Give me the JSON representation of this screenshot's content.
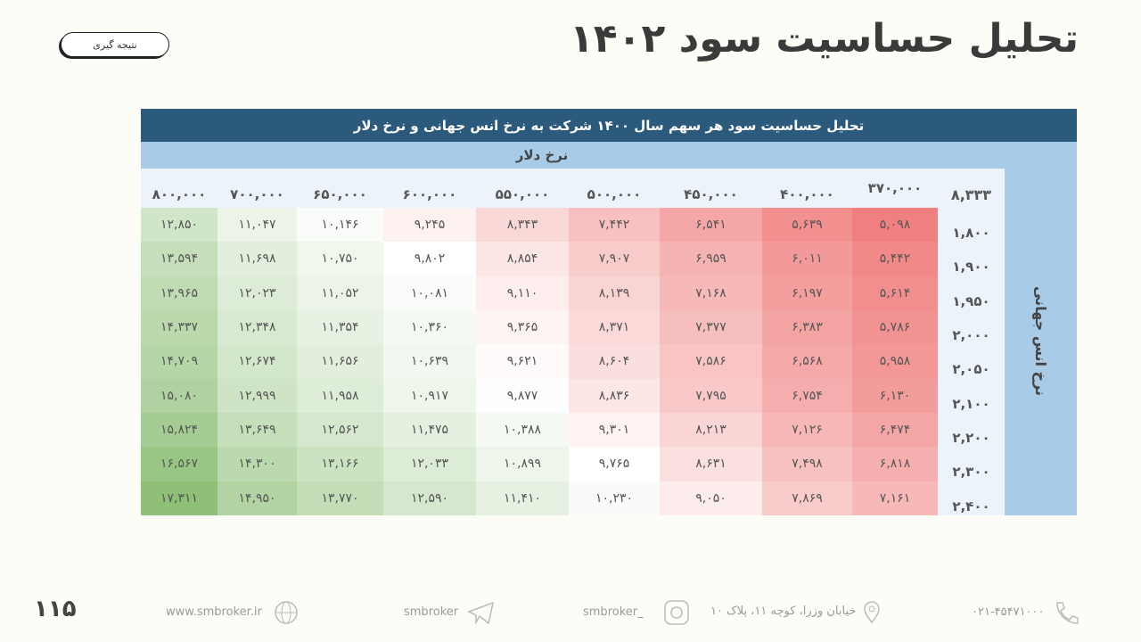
{
  "header": {
    "title": "تحلیل حساسیت سود ۱۴۰۲",
    "button": "نتیجه گیری"
  },
  "table": {
    "title": "تحلیل حساسیت سود هر سهم سال ۱۴۰۰  شرکت به نرخ انس جهانی و نرخ دلار",
    "column_axis_label": "نرخ دلار",
    "row_axis_label": "نرخ انس جهانی",
    "corner": "۸,۳۳۳",
    "columns": [
      "۳۷۰,۰۰۰",
      "۴۰۰,۰۰۰",
      "۴۵۰,۰۰۰",
      "۵۰۰,۰۰۰",
      "۵۵۰,۰۰۰",
      "۶۰۰,۰۰۰",
      "۶۵۰,۰۰۰",
      "۷۰۰,۰۰۰",
      "۸۰۰,۰۰۰"
    ],
    "row_labels": [
      "۱,۸۰۰",
      "۱,۹۰۰",
      "۱,۹۵۰",
      "۲,۰۰۰",
      "۲,۰۵۰",
      "۲,۱۰۰",
      "۲,۲۰۰",
      "۲,۳۰۰",
      "۲,۴۰۰"
    ],
    "rows": [
      [
        "۵,۰۹۸",
        "۵,۶۳۹",
        "۶,۵۴۱",
        "۷,۴۴۲",
        "۸,۳۴۳",
        "۹,۲۴۵",
        "۱۰,۱۴۶",
        "۱۱,۰۴۷",
        "۱۲,۸۵۰"
      ],
      [
        "۵,۴۴۲",
        "۶,۰۱۱",
        "۶,۹۵۹",
        "۷,۹۰۷",
        "۸,۸۵۴",
        "۹,۸۰۲",
        "۱۰,۷۵۰",
        "۱۱,۶۹۸",
        "۱۳,۵۹۴"
      ],
      [
        "۵,۶۱۴",
        "۶,۱۹۷",
        "۷,۱۶۸",
        "۸,۱۳۹",
        "۹,۱۱۰",
        "۱۰,۰۸۱",
        "۱۱,۰۵۲",
        "۱۲,۰۲۳",
        "۱۳,۹۶۵"
      ],
      [
        "۵,۷۸۶",
        "۶,۳۸۳",
        "۷,۳۷۷",
        "۸,۳۷۱",
        "۹,۳۶۵",
        "۱۰,۳۶۰",
        "۱۱,۳۵۴",
        "۱۲,۳۴۸",
        "۱۴,۳۳۷"
      ],
      [
        "۵,۹۵۸",
        "۶,۵۶۸",
        "۷,۵۸۶",
        "۸,۶۰۴",
        "۹,۶۲۱",
        "۱۰,۶۳۹",
        "۱۱,۶۵۶",
        "۱۲,۶۷۴",
        "۱۴,۷۰۹"
      ],
      [
        "۶,۱۳۰",
        "۶,۷۵۴",
        "۷,۷۹۵",
        "۸,۸۳۶",
        "۹,۸۷۷",
        "۱۰,۹۱۷",
        "۱۱,۹۵۸",
        "۱۲,۹۹۹",
        "۱۵,۰۸۰"
      ],
      [
        "۶,۴۷۴",
        "۷,۱۲۶",
        "۸,۲۱۳",
        "۹,۳۰۱",
        "۱۰,۳۸۸",
        "۱۱,۴۷۵",
        "۱۲,۵۶۲",
        "۱۳,۶۴۹",
        "۱۵,۸۲۴"
      ],
      [
        "۶,۸۱۸",
        "۷,۴۹۸",
        "۸,۶۳۱",
        "۹,۷۶۵",
        "۱۰,۸۹۹",
        "۱۲,۰۳۳",
        "۱۳,۱۶۶",
        "۱۴,۳۰۰",
        "۱۶,۵۶۷"
      ],
      [
        "۷,۱۶۱",
        "۷,۸۶۹",
        "۹,۰۵۰",
        "۱۰,۲۳۰",
        "۱۱,۴۱۰",
        "۱۲,۵۹۰",
        "۱۳,۷۷۰",
        "۱۴,۹۵۰",
        "۱۷,۳۱۱"
      ]
    ]
  },
  "footer": {
    "page_number": "۱۱۵",
    "website": "www.smbroker.ir",
    "telegram": "smbroker",
    "instagram": "smbroker_",
    "address": "خیابان وزرا، کوچه ۱۱، پلاک ۱۰",
    "phone": "۰۲۱-۴۵۴۷۱۰۰۰"
  }
}
